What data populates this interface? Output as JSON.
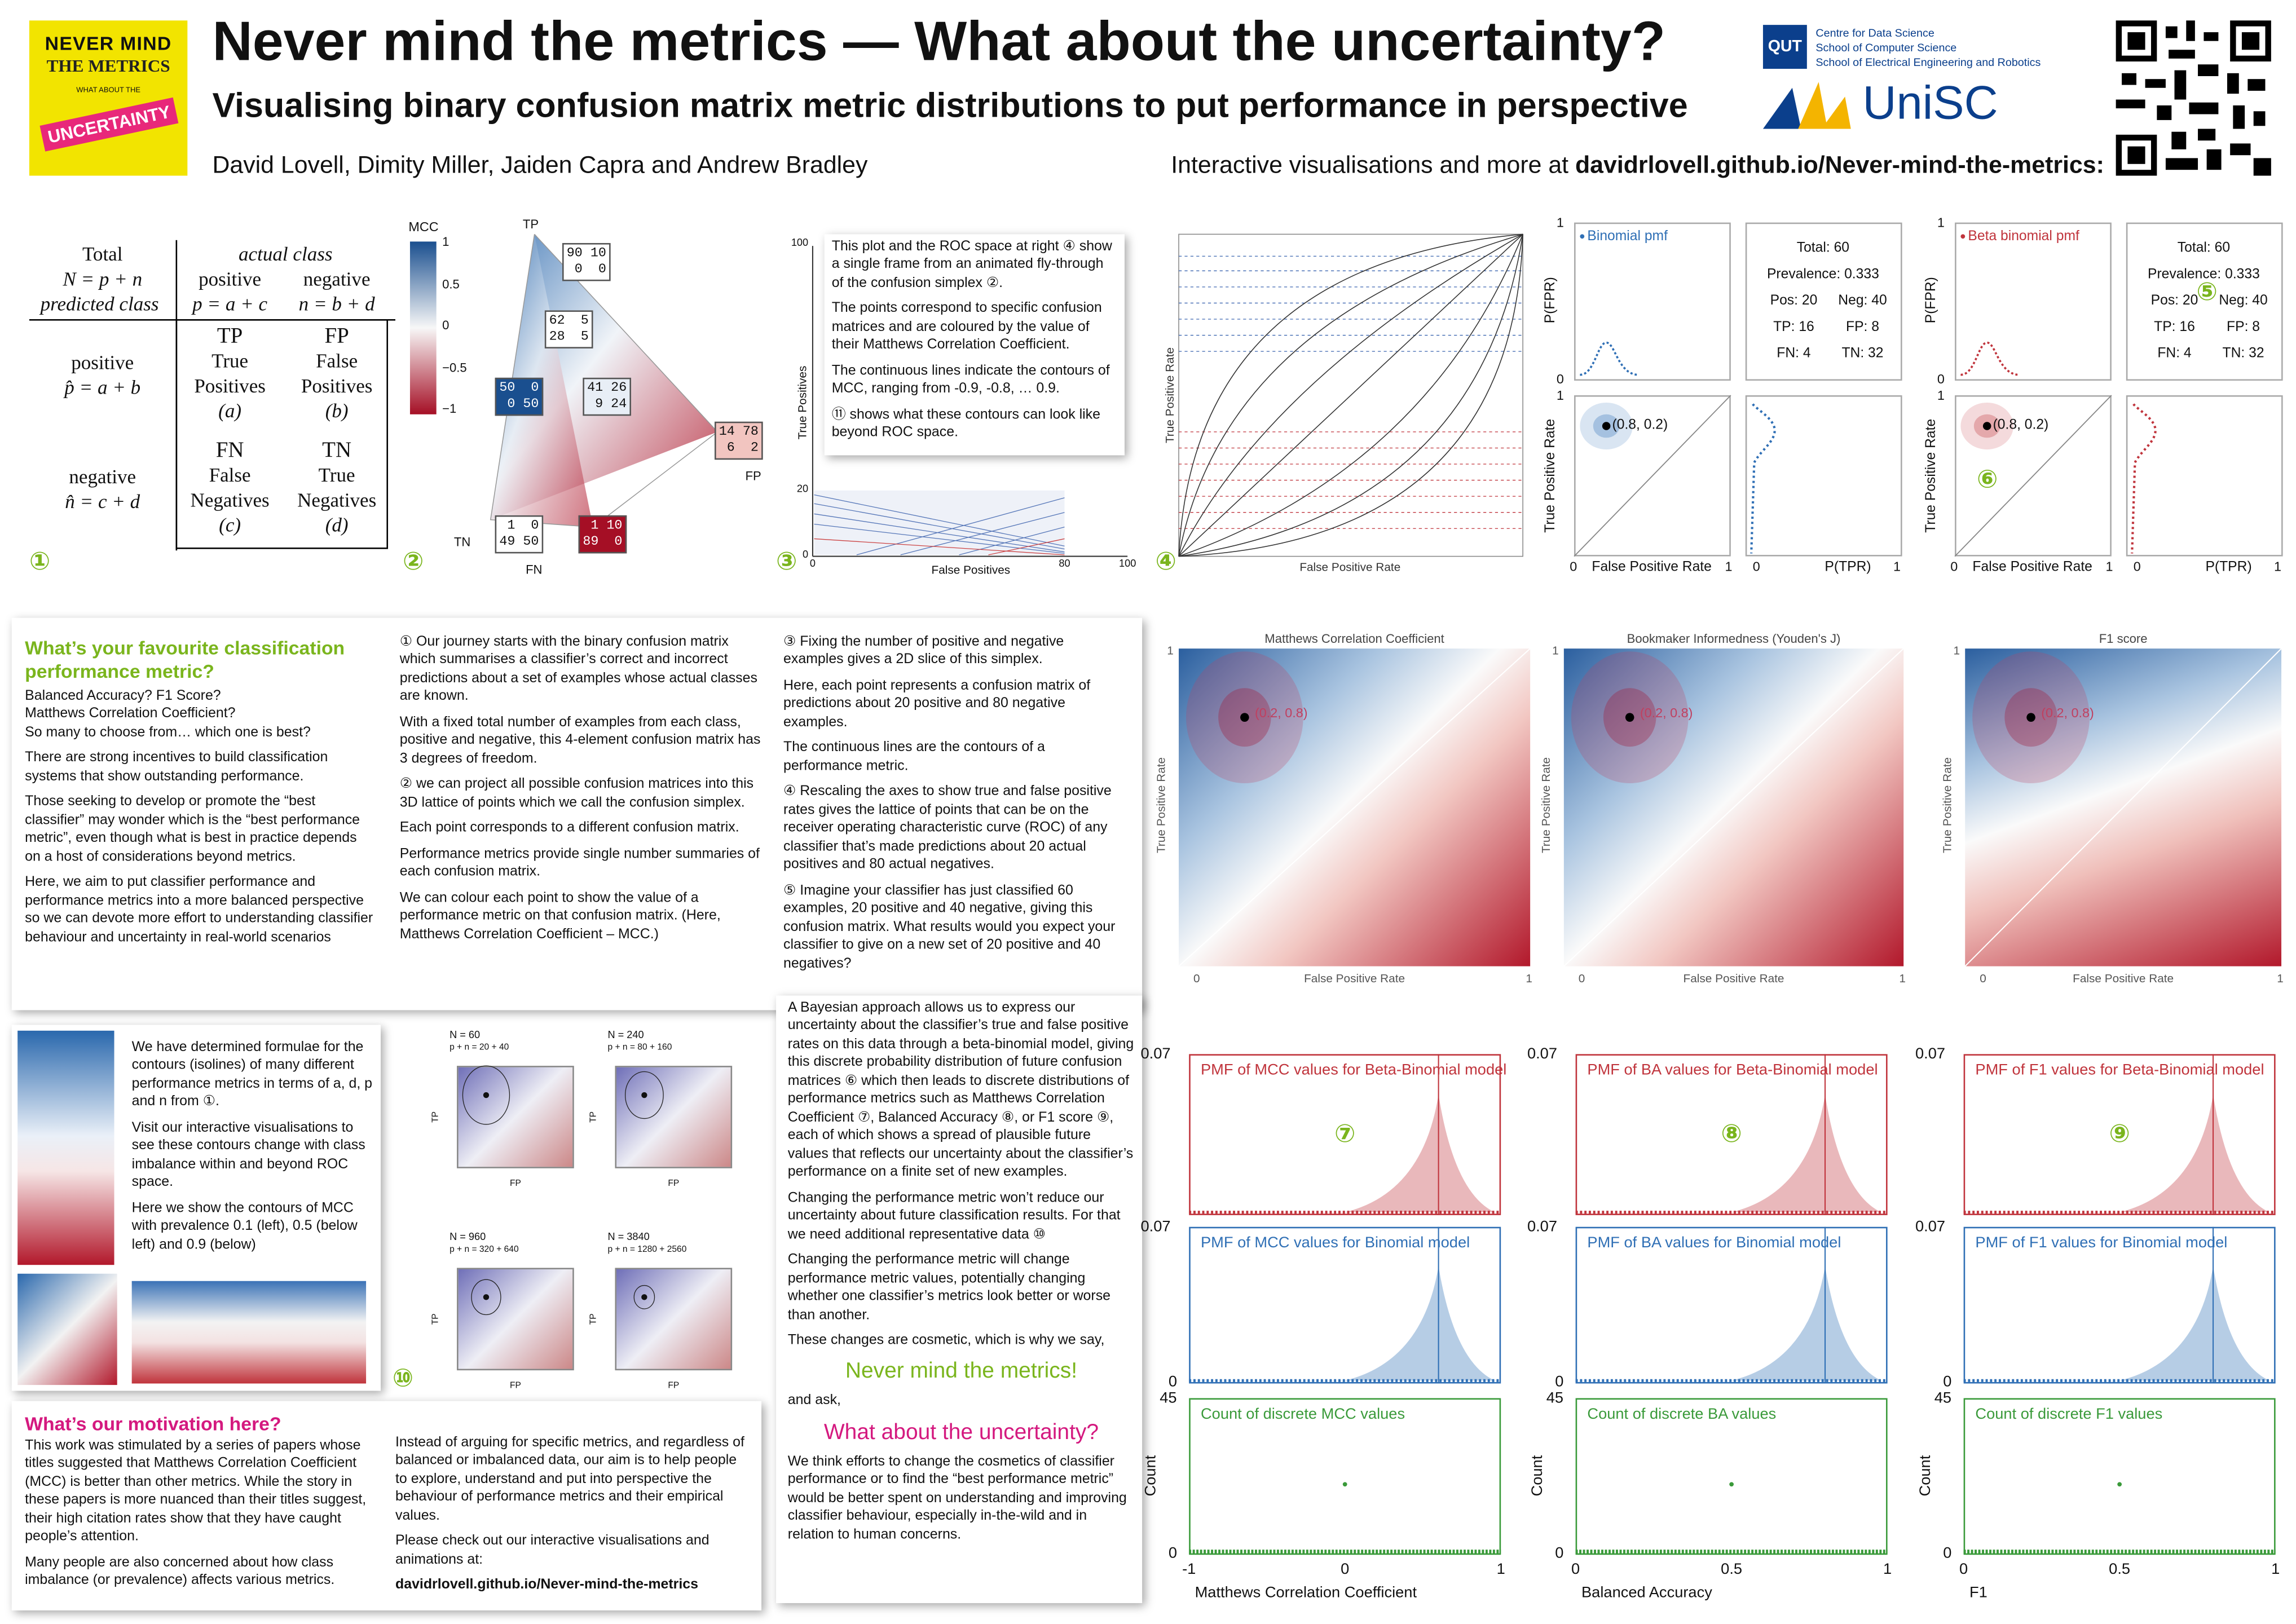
{
  "header": {
    "logo": [
      "NEVER MIND",
      "THE METRICS",
      "WHAT ABOUT THE",
      "UNCERTAINTY"
    ],
    "title": "Never mind the metrics — What about the uncertainty?",
    "subtitle": "Visualising binary confusion matrix metric distributions to put performance in perspective",
    "authors": "David Lovell, Dimity Miller, Jaiden Capra and Andrew Bradley",
    "link_intro": "Interactive visualisations and more at",
    "link_url": "davidrlovell.github.io/Never-mind-the-metrics:",
    "qut": "QUT",
    "qut_lines": [
      "Centre for Data Science",
      "School of Computer Science",
      "School of Electrical Engineering and Robotics"
    ],
    "unisc": "UniSC"
  },
  "confusion": {
    "total": "Total",
    "total_eq": "N = p + n",
    "predicted": "predicted class",
    "actual": "actual class",
    "pos": "positive",
    "pos_eq": "p = a + c",
    "neg": "negative",
    "neg_eq": "n = b + d",
    "row_pos": "positive",
    "row_pos_eq": "p̂ = a + b",
    "row_neg": "negative",
    "row_neg_eq": "n̂ = c + d",
    "cells": [
      [
        "TP",
        "True",
        "Positives",
        "(a)"
      ],
      [
        "FP",
        "False",
        "Positives",
        "(b)"
      ],
      [
        "FN",
        "False",
        "Negatives",
        "(c)"
      ],
      [
        "TN",
        "True",
        "Negatives",
        "(d)"
      ]
    ],
    "callout": "①"
  },
  "simplex": {
    "colorbar_title": "MCC",
    "colorbar_ticks": [
      "1",
      "0.5",
      "0",
      "−0.5",
      "−1"
    ],
    "vertices": [
      "TP",
      "FP",
      "TN",
      "FN"
    ],
    "matrices": [
      "90 10\n 0  0",
      "62  5\n28  5",
      "50  0\n 0 50",
      "41 26\n 9 24",
      "14 78\n 6  2",
      " 1  0\n49 50",
      " 1 10\n89  0"
    ],
    "callout": "②"
  },
  "slice": {
    "y_label": "True Positives",
    "x_label": "False Positives",
    "y_ticks": [
      "100",
      "20",
      "0"
    ],
    "x_ticks": [
      "0",
      "80",
      "100"
    ],
    "note": [
      "This plot and the ROC space at right ④ show a single frame from an animated fly-through of the confusion simplex ②.",
      "The points correspond to specific confusion matrices and are coloured by the value of their Matthews Correlation Coefficient.",
      "The continuous lines indicate the contours of MCC, ranging from -0.9, -0.8, … 0.9.",
      "⑪ shows what these contours can look like beyond ROC space."
    ],
    "callout": "③"
  },
  "roc": {
    "y_label": "True Positive Rate",
    "x_label": "False Positive Rate",
    "callout": "④"
  },
  "roc_panels": [
    {
      "legend": "Binomial pmf",
      "color": "#2f6fb5",
      "top_label": "P(FPR)",
      "top_ticks": [
        "1",
        "0"
      ],
      "info": [
        "Total: 60",
        "Prevalence: 0.333",
        "Pos: 20",
        "Neg: 40",
        "TP: 16",
        "FP: 8",
        "FN: 4",
        "TN: 32"
      ],
      "y_label": "True Positive Rate",
      "x_label": "False Positive Rate",
      "main_ticks": [
        "1",
        "0",
        "1"
      ],
      "side_label": "P(TPR)",
      "side_ticks": [
        "0",
        "1"
      ],
      "point_label": "(0.8, 0.2)",
      "callouts": []
    },
    {
      "legend": "Beta binomial pmf",
      "color": "#c0343c",
      "top_label": "P(FPR)",
      "top_ticks": [
        "1",
        "0"
      ],
      "info": [
        "Total: 60",
        "Prevalence: 0.333",
        "Pos: 20",
        "Neg: 40",
        "TP: 16",
        "FP: 8",
        "FN: 4",
        "TN: 32"
      ],
      "y_label": "True Positive Rate",
      "x_label": "False Positive Rate",
      "main_ticks": [
        "1",
        "0",
        "1"
      ],
      "side_label": "P(TPR)",
      "side_ticks": [
        "0",
        "1"
      ],
      "point_label": "(0.8, 0.2)",
      "callouts": [
        "⑤",
        "⑥"
      ]
    }
  ],
  "intro": {
    "heading": "What’s your favourite classification performance metric?",
    "col1": [
      "Balanced Accuracy? F1 Score?\nMatthews Correlation Coefficient?\nSo many to choose from… which one is best?",
      "There are strong incentives to build classification systems that show outstanding performance.",
      "Those seeking to develop or promote the “best classifier” may wonder which is the “best performance metric”, even though what is best in practice depends on a host of considerations beyond metrics.",
      "Here, we aim to put classifier performance and performance metrics into a more balanced perspective so we can devote more effort to understanding classifier behaviour and uncertainty in real-world scenarios"
    ],
    "col2": [
      "① Our journey starts with the binary confusion matrix which summarises a classifier’s correct and incorrect predictions about a set of examples whose actual classes are known.",
      "With a fixed total number of examples from each class, positive and negative, this 4-element confusion matrix has 3 degrees of freedom.",
      "② we can project all possible confusion matrices into this 3D lattice of points which we call the confusion simplex.",
      "Each point corresponds to a different confusion matrix.",
      "Performance metrics provide single number summaries of each confusion matrix.",
      "We can colour each point to show the value of a performance metric on that confusion matrix. (Here, Matthews Correlation Coefficient – MCC.)"
    ],
    "col3": [
      "③ Fixing the number of positive and negative examples gives a 2D slice of this simplex.",
      "Here, each point represents a confusion matrix of predictions about 20 positive and 80 negative examples.",
      "The continuous lines are the contours of a performance metric.",
      "④ Rescaling the axes to show true and false positive rates gives the lattice of points that can be on the receiver operating characteristic curve (ROC) of any classifier that’s made predictions about 20 actual positives and 80 actual negatives.",
      "⑤ Imagine your classifier has just classified 60 examples, 20 positive and 40 negative, giving this confusion matrix. What results would you expect your classifier to give on a new set of 20 positive and 40 negatives?"
    ]
  },
  "heatmaps": [
    {
      "title": "Matthews Correlation Coefficient",
      "y_label": "True Positive Rate",
      "x_label": "False Positive Rate",
      "ticks": [
        "1",
        "0",
        "1"
      ],
      "point_label": "(0.2, 0.8)"
    },
    {
      "title": "Bookmaker Informedness (Youden's J)",
      "y_label": "True Positive Rate",
      "x_label": "False Positive Rate",
      "ticks": [
        "1",
        "0",
        "1"
      ],
      "point_label": "(0.2, 0.8)"
    },
    {
      "title": "F1 score",
      "y_label": "True Positive Rate",
      "x_label": "False Positive Rate",
      "ticks": [
        "1",
        "0",
        "1"
      ],
      "point_label": "(0.2, 0.8)"
    }
  ],
  "contours": {
    "text": [
      "We have determined formulae for the contours (isolines) of many different performance metrics in terms of a, d, p and n from ①.",
      "Visit our interactive visualisations to see these contours change with class imbalance within and beyond ROC space.",
      "Here we show the contours of MCC with prevalence 0.1 (left), 0.5 (below left) and 0.9 (below)"
    ]
  },
  "small_plots": {
    "panels": [
      {
        "n": "N = 60",
        "pn": "p + n = 20 + 40"
      },
      {
        "n": "N = 240",
        "pn": "p + n = 80 + 160"
      },
      {
        "n": "N = 960",
        "pn": "p + n = 320 + 640"
      },
      {
        "n": "N = 3840",
        "pn": "p + n = 1280 + 2560"
      }
    ],
    "y_label": "TP",
    "x_label": "FP",
    "callout": "⑩"
  },
  "bayes": {
    "text": [
      "A Bayesian approach allows us to express our uncertainty about the classifier’s true and false positive rates on this data through a beta-binomial model, giving this discrete probability distribution of future confusion matrices ⑥ which then leads to discrete distributions of performance metrics such as Matthews Correlation Coefficient ⑦, Balanced Accuracy ⑧, or F1 score ⑨, each of which shows a spread of plausible future values that reflects our uncertainty about the classifier’s performance on a finite set of new examples.",
      "Changing the performance metric won’t reduce our uncertainty about future classification results. For that we need additional representative data ⑩",
      "Changing the performance metric will change performance metric values, potentially changing whether one classifier’s metrics look better or worse than another.",
      "These changes are cosmetic, which is why we say,"
    ],
    "slogan1": "Never mind the metrics!",
    "ask": "and ask,",
    "slogan2": "What about the uncertainty?",
    "closing": "We think efforts to change the cosmetics of classifier performance or to find the “best performance metric” would be better spent on understanding and improving classifier behaviour, especially in-the-wild and in relation to human concerns."
  },
  "motivation": {
    "heading": "What’s our motivation here?",
    "col1": [
      "This work was stimulated by a series of papers whose titles suggested that Matthews Correlation Coefficient (MCC) is better than other metrics. While the story in these papers is more nuanced than their titles suggest, their high citation rates show that they have caught people’s attention.",
      "Many people are also concerned about how class imbalance (or prevalence) affects various metrics."
    ],
    "col2": [
      "Instead of arguing for specific metrics, and regardless of balanced or imbalanced data, our aim is to help people to explore, understand and put into perspective the behaviour of performance metrics and their empirical values.",
      "Please check out our interactive visualisations and animations at:"
    ],
    "url": "davidrlovell.github.io/Never-mind-the-metrics"
  },
  "pmf_columns": [
    {
      "beta_title": "PMF of MCC values for Beta-Binomial model",
      "binom_title": "PMF of MCC values for Binomial model",
      "count_title": "Count of discrete MCC values",
      "callout": "⑦",
      "beta_ticks": [
        "0.07"
      ],
      "binom_ticks": [
        "0.07",
        "0"
      ],
      "count_ticks": [
        "45",
        "0"
      ],
      "count_label": "Count",
      "x_ticks": [
        "-1",
        "0",
        "1"
      ],
      "x_label": "Matthews Correlation Coefficient"
    },
    {
      "beta_title": "PMF of BA values for Beta-Binomial model",
      "binom_title": "PMF of BA values for Binomial model",
      "count_title": "Count of discrete BA values",
      "callout": "⑧",
      "beta_ticks": [
        "0.07"
      ],
      "binom_ticks": [
        "0.07",
        "0"
      ],
      "count_ticks": [
        "45",
        "0"
      ],
      "count_label": "Count",
      "x_ticks": [
        "0",
        "0.5",
        "1"
      ],
      "x_label": "Balanced Accuracy"
    },
    {
      "beta_title": "PMF of F1 values for Beta-Binomial model",
      "binom_title": "PMF of F1 values for Binomial model",
      "count_title": "Count of discrete F1 values",
      "callout": "⑨",
      "beta_ticks": [
        "0.07"
      ],
      "binom_ticks": [
        "0.07",
        "0"
      ],
      "count_ticks": [
        "45",
        "0"
      ],
      "count_label": "Count",
      "x_ticks": [
        "0",
        "0.5",
        "1"
      ],
      "x_label": "F1"
    }
  ]
}
